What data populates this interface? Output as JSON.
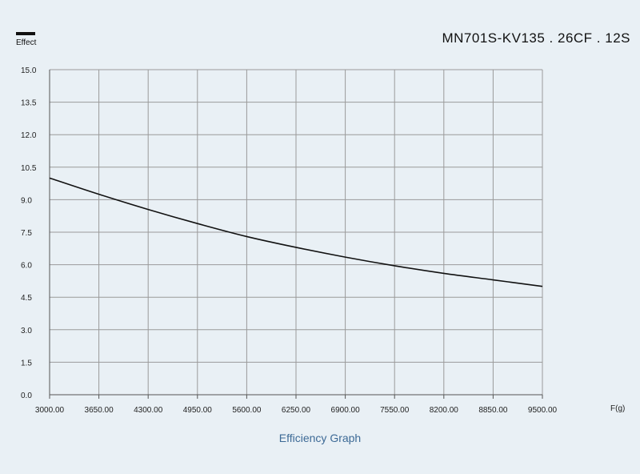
{
  "header": {
    "model_title": "MN701S-KV135 . 26CF . 12S",
    "legend_label": "Effect"
  },
  "caption": "Efficiency Graph",
  "chart_data": {
    "type": "line",
    "title": "",
    "xlabel": "F(g)",
    "ylabel": "Effect",
    "xlim": [
      3000,
      9500
    ],
    "ylim": [
      0,
      15
    ],
    "x_ticks": [
      "3000.00",
      "3650.00",
      "4300.00",
      "4950.00",
      "5600.00",
      "6250.00",
      "6900.00",
      "7550.00",
      "8200.00",
      "8850.00",
      "9500.00"
    ],
    "y_ticks": [
      "0.0",
      "1.5",
      "3.0",
      "4.5",
      "6.0",
      "7.5",
      "9.0",
      "10.5",
      "12.0",
      "13.5",
      "15.0"
    ],
    "grid": true,
    "legend_position": "top-left",
    "series": [
      {
        "name": "Effect",
        "color": "#111111",
        "x": [
          3000,
          3650,
          4300,
          4950,
          5600,
          6250,
          6900,
          7550,
          8200,
          8850,
          9500
        ],
        "y": [
          10.0,
          9.25,
          8.55,
          7.9,
          7.3,
          6.8,
          6.35,
          5.95,
          5.6,
          5.3,
          5.0
        ]
      }
    ]
  }
}
